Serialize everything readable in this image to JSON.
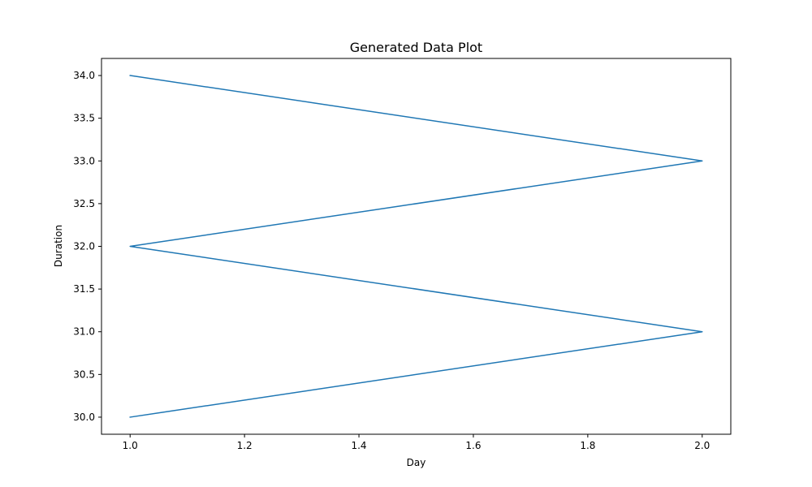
{
  "chart_data": {
    "type": "line",
    "title": "Generated Data Plot",
    "xlabel": "Day",
    "ylabel": "Duration",
    "xlim": [
      0.95,
      2.05
    ],
    "ylim": [
      29.8,
      34.2
    ],
    "x_ticks": [
      1.0,
      1.2,
      1.4,
      1.6,
      1.8,
      2.0
    ],
    "x_tick_labels": [
      "1.0",
      "1.2",
      "1.4",
      "1.6",
      "1.8",
      "2.0"
    ],
    "y_ticks": [
      30.0,
      30.5,
      31.0,
      31.5,
      32.0,
      32.5,
      33.0,
      33.5,
      34.0
    ],
    "y_tick_labels": [
      "30.0",
      "30.5",
      "31.0",
      "31.5",
      "32.0",
      "32.5",
      "33.0",
      "33.5",
      "34.0"
    ],
    "grid": false,
    "legend": false,
    "series": [
      {
        "x": [
          1.0,
          2.0,
          1.0,
          2.0,
          1.0
        ],
        "y": [
          34.0,
          33.0,
          32.0,
          31.0,
          30.0
        ],
        "color": "#1f77b4"
      }
    ]
  }
}
